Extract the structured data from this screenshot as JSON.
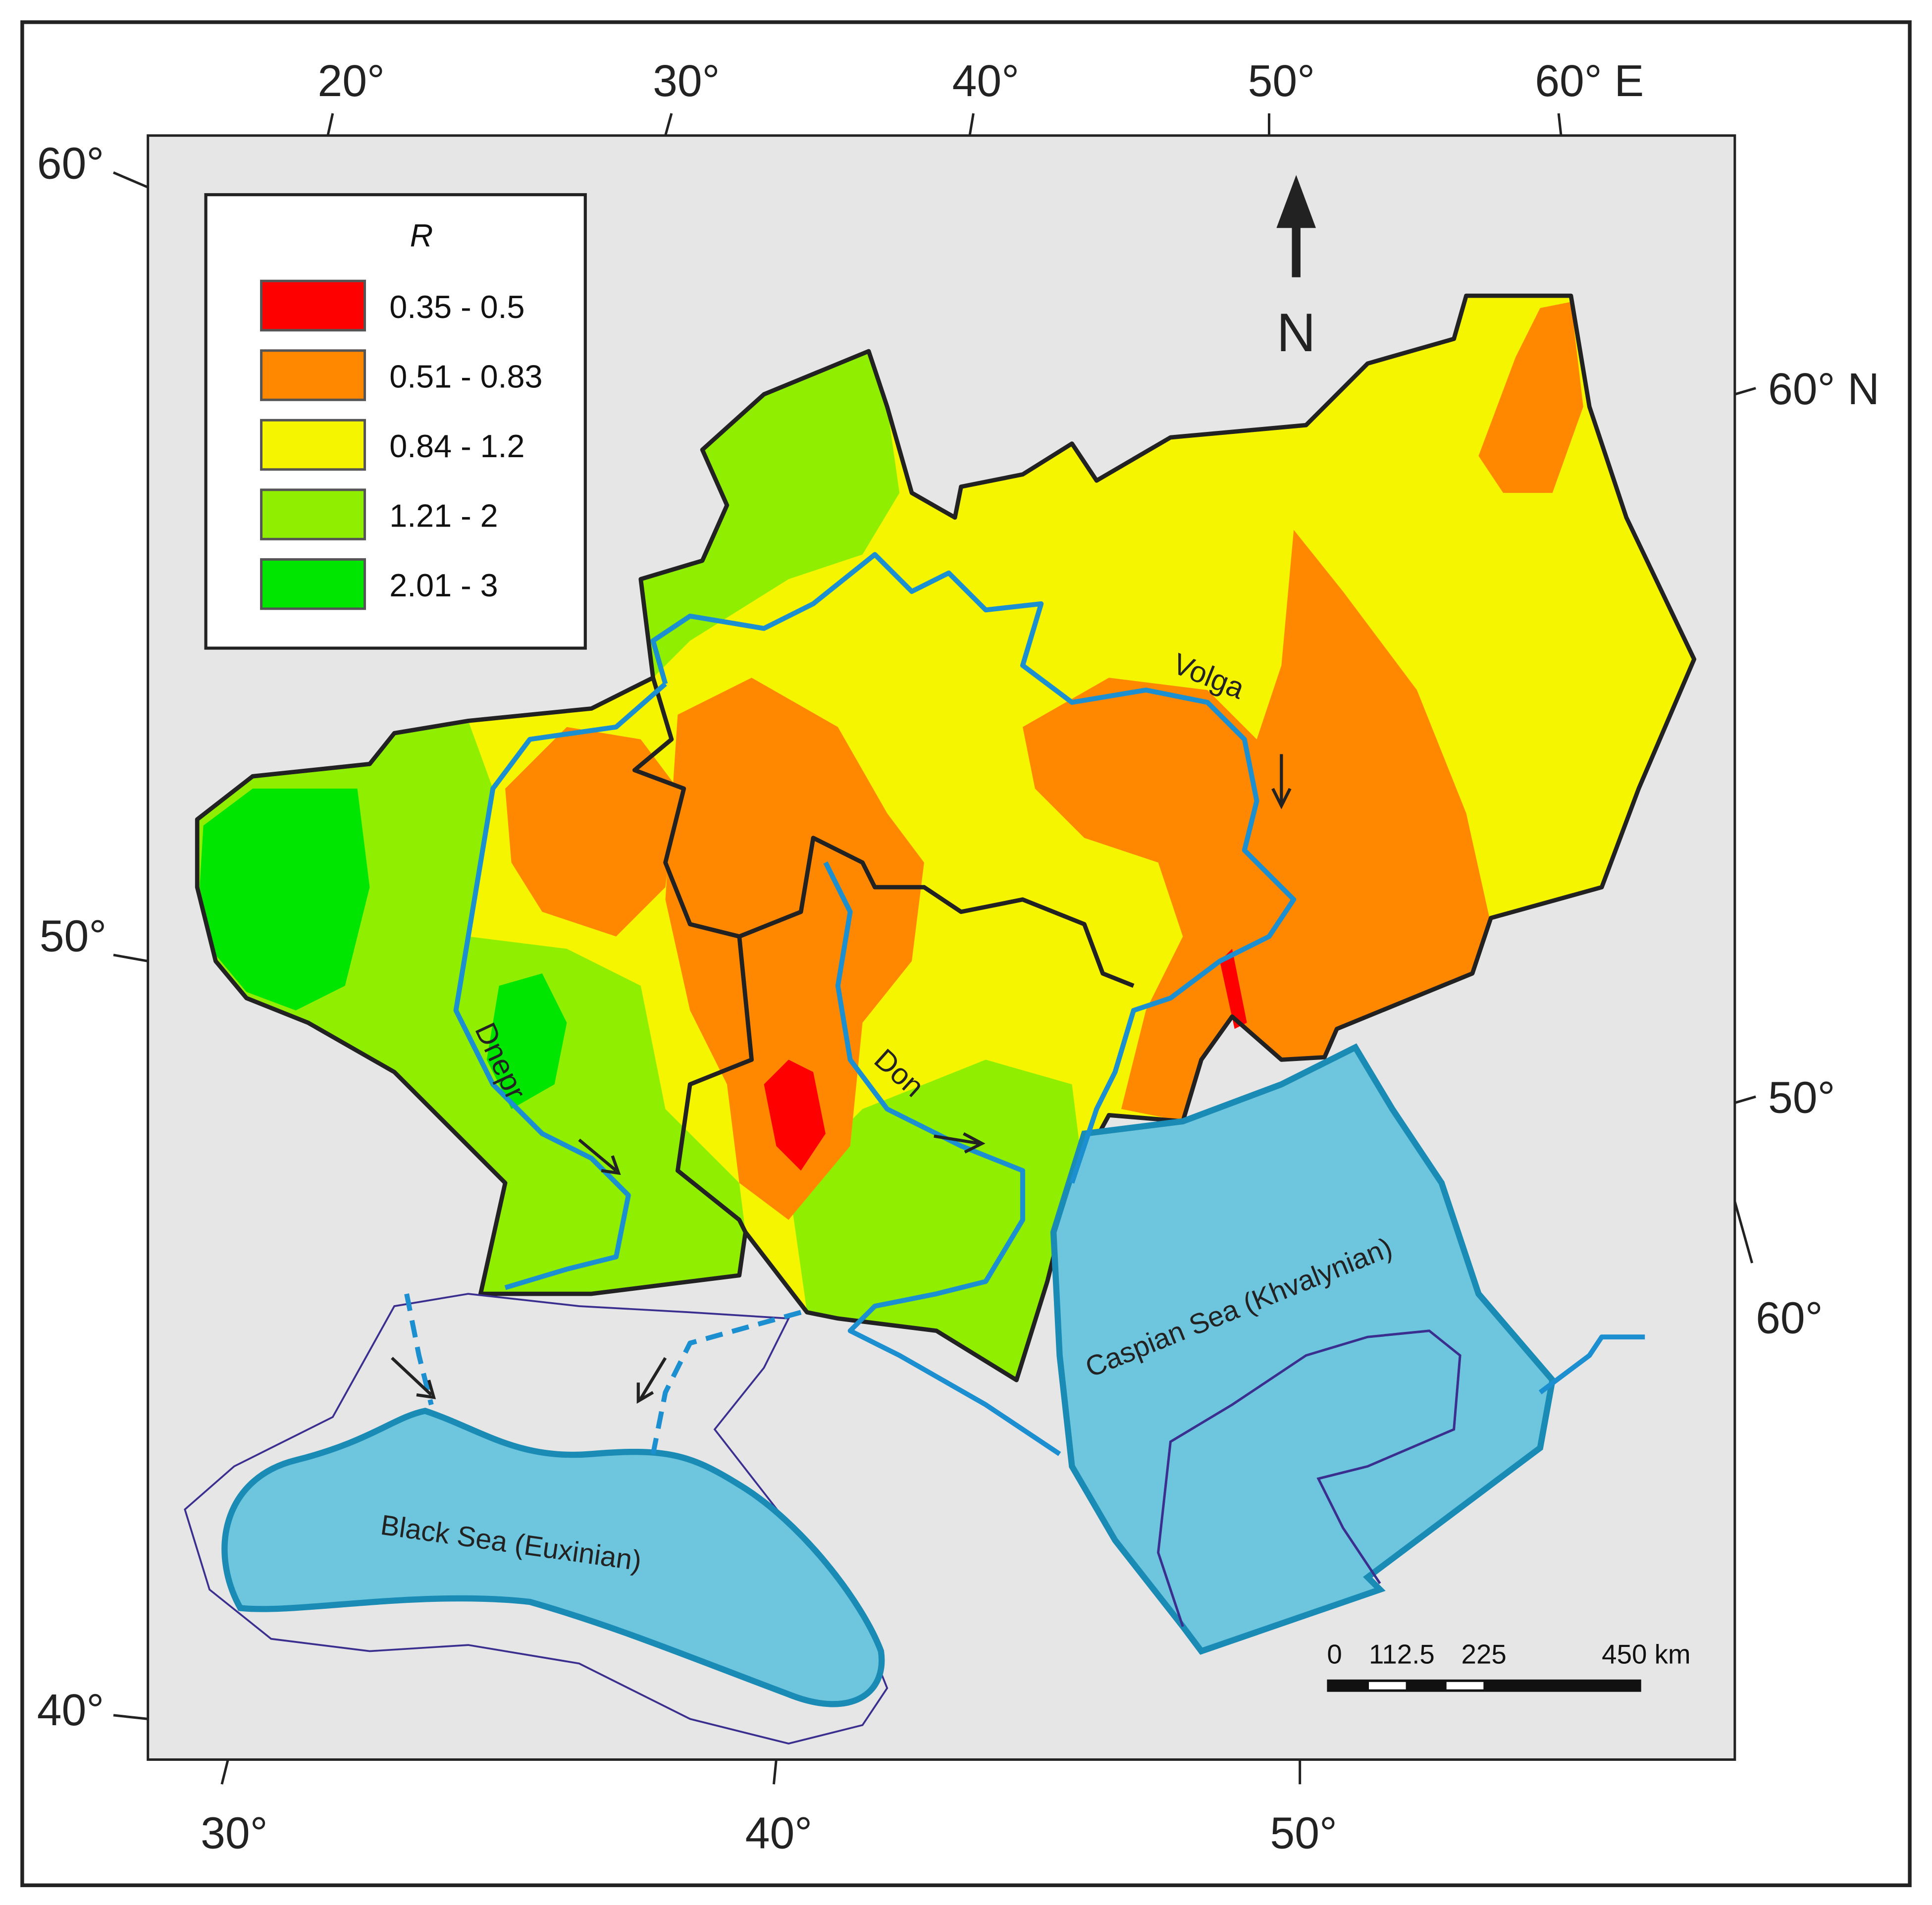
{
  "map": {
    "legend": {
      "title": "R",
      "items": [
        {
          "label": "0.35 - 0.5",
          "color": "#ff0000"
        },
        {
          "label": "0.51 - 0.83",
          "color": "#ff8800"
        },
        {
          "label": "0.84 - 1.2",
          "color": "#f5f500"
        },
        {
          "label": "1.21 - 2",
          "color": "#90ee00"
        },
        {
          "label": "2.01 - 3",
          "color": "#00e600"
        }
      ]
    },
    "north": "N",
    "top_labels": [
      "20°",
      "30°",
      "40°",
      "50°",
      "60° E"
    ],
    "left_labels": [
      "60°",
      "50°",
      "40°"
    ],
    "right_labels": [
      "60° N",
      "50°",
      "60°"
    ],
    "bottom_labels": [
      "30°",
      "40°",
      "50°"
    ],
    "rivers": [
      "Volga",
      "Dnepr",
      "Don"
    ],
    "seas": [
      "Caspian Sea (Khvalynian)",
      "Black Sea (Euxinian)"
    ],
    "scale": [
      "0",
      "112.5",
      "225",
      "450 km"
    ]
  }
}
